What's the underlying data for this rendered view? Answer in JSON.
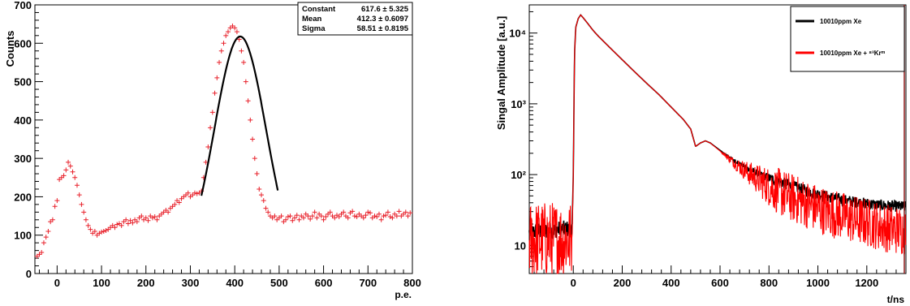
{
  "chart_data": [
    {
      "type": "scatter",
      "title": "",
      "xlabel": "p.e.",
      "ylabel": "Counts",
      "xlim": [
        -50,
        800
      ],
      "ylim": [
        0,
        700
      ],
      "xticks": [
        0,
        100,
        200,
        300,
        400,
        500,
        600,
        700,
        800
      ],
      "yticks": [
        100,
        200,
        300,
        400,
        500,
        600,
        700
      ],
      "grid": false,
      "stats_box": {
        "position": "top-right",
        "rows": [
          {
            "name": "Constant",
            "value": "617.6 ± 5.325"
          },
          {
            "name": "Mean",
            "value": "412.3 ± 0.6097"
          },
          {
            "name": "Sigma",
            "value": "58.51 ± 0.8195"
          }
        ]
      },
      "colors": {
        "data": "#e8202a",
        "fit": "#000000"
      },
      "series": [
        {
          "marker": "plus",
          "x": [
            -45,
            -40,
            -35,
            -30,
            -25,
            -20,
            -15,
            -10,
            -5,
            0,
            5,
            10,
            15,
            20,
            25,
            30,
            35,
            40,
            45,
            50,
            55,
            60,
            65,
            70,
            75,
            80,
            85,
            90,
            95,
            100,
            105,
            110,
            115,
            120,
            125,
            130,
            135,
            140,
            145,
            150,
            155,
            160,
            165,
            170,
            175,
            180,
            185,
            190,
            195,
            200,
            205,
            210,
            215,
            220,
            225,
            230,
            235,
            240,
            245,
            250,
            255,
            260,
            265,
            270,
            275,
            280,
            285,
            290,
            295,
            300,
            305,
            310,
            315,
            320,
            325,
            330,
            335,
            340,
            345,
            350,
            355,
            360,
            365,
            370,
            375,
            380,
            385,
            390,
            395,
            400,
            405,
            410,
            415,
            420,
            425,
            430,
            435,
            440,
            445,
            450,
            455,
            460,
            465,
            470,
            475,
            480,
            485,
            490,
            495,
            500,
            505,
            510,
            515,
            520,
            525,
            530,
            535,
            540,
            545,
            550,
            555,
            560,
            565,
            570,
            575,
            580,
            585,
            590,
            595,
            600,
            605,
            610,
            615,
            620,
            625,
            630,
            635,
            640,
            645,
            650,
            655,
            660,
            665,
            670,
            675,
            680,
            685,
            690,
            695,
            700,
            705,
            710,
            715,
            720,
            725,
            730,
            735,
            740,
            745,
            750,
            755,
            760,
            765,
            770,
            775,
            780,
            785,
            790,
            795
          ],
          "y": [
            45,
            50,
            55,
            80,
            95,
            110,
            135,
            140,
            175,
            190,
            245,
            250,
            255,
            270,
            290,
            280,
            265,
            250,
            230,
            205,
            180,
            160,
            140,
            125,
            115,
            105,
            110,
            100,
            105,
            108,
            110,
            112,
            115,
            120,
            125,
            120,
            128,
            130,
            125,
            135,
            140,
            130,
            138,
            132,
            140,
            135,
            145,
            150,
            140,
            145,
            138,
            150,
            145,
            148,
            140,
            150,
            155,
            160,
            165,
            160,
            170,
            175,
            180,
            190,
            185,
            195,
            200,
            205,
            210,
            200,
            205,
            210,
            208,
            210,
            215,
            250,
            290,
            330,
            380,
            420,
            470,
            510,
            550,
            580,
            600,
            620,
            630,
            640,
            645,
            640,
            630,
            610,
            580,
            550,
            500,
            450,
            400,
            350,
            300,
            260,
            220,
            205,
            190,
            170,
            160,
            150,
            145,
            150,
            140,
            145,
            150,
            135,
            140,
            148,
            150,
            138,
            145,
            152,
            140,
            150,
            145,
            155,
            150,
            142,
            150,
            160,
            145,
            155,
            150,
            140,
            148,
            155,
            160,
            150,
            145,
            152,
            148,
            155,
            160,
            150,
            145,
            158,
            162,
            150,
            148,
            155,
            150,
            145,
            152,
            160,
            158,
            145,
            150,
            148,
            155,
            140,
            150,
            152,
            160,
            148,
            145,
            155,
            150,
            162,
            150,
            155,
            160,
            150,
            158
          ]
        },
        {
          "name": "Gaussian fit",
          "type": "line",
          "model": "gaus",
          "constant": 617.6,
          "mean": 412.3,
          "sigma": 58.51,
          "x_range": [
            325,
            497
          ]
        }
      ]
    },
    {
      "type": "line",
      "title": "",
      "xlabel": "t/ns",
      "ylabel": "Singal Amplitude [a.u.]",
      "xlim": [
        -180,
        1360
      ],
      "ylim": [
        4,
        25000
      ],
      "yscale": "log",
      "xticks": [
        0,
        200,
        400,
        600,
        800,
        1000,
        1200
      ],
      "ytick_labels": [
        "10",
        "10²",
        "10³",
        "10⁴"
      ],
      "ytick_values": [
        10,
        100,
        1000,
        10000
      ],
      "grid": false,
      "legend": {
        "position": "top-right",
        "entries": [
          {
            "label": "10010ppm Xe",
            "color": "#000000"
          },
          {
            "label": "10010ppm Xe + ⁸³Krᵐ",
            "color": "#ff0000"
          }
        ]
      },
      "series": [
        {
          "color": "#000000",
          "x": [
            -180,
            -150,
            -100,
            -50,
            -5,
            0,
            5,
            10,
            20,
            30,
            40,
            60,
            80,
            100,
            150,
            200,
            250,
            300,
            350,
            400,
            450,
            480,
            500,
            520,
            540,
            560,
            600,
            650,
            700,
            750,
            800,
            850,
            900,
            950,
            1000,
            1050,
            1100,
            1150,
            1200,
            1250,
            1300,
            1360
          ],
          "y": [
            15,
            16,
            16,
            17,
            17,
            100,
            5000,
            12000,
            16000,
            18000,
            16500,
            13500,
            11000,
            9200,
            6200,
            4200,
            2850,
            1950,
            1350,
            900,
            600,
            440,
            250,
            280,
            300,
            280,
            220,
            165,
            130,
            105,
            90,
            78,
            68,
            60,
            53,
            48,
            44,
            41,
            39,
            37,
            36,
            35
          ]
        },
        {
          "color": "#ff0000",
          "x": [
            -180,
            -150,
            -100,
            -50,
            -5,
            0,
            5,
            10,
            20,
            30,
            40,
            60,
            80,
            100,
            150,
            200,
            250,
            300,
            350,
            400,
            450,
            480,
            500,
            520,
            540,
            560,
            600,
            650,
            700,
            750,
            800,
            850,
            900,
            950,
            1000,
            1050,
            1100,
            1150,
            1200,
            1250,
            1300,
            1360
          ],
          "y": [
            12,
            12,
            12,
            12,
            12,
            100,
            5000,
            12000,
            16000,
            18000,
            16500,
            13500,
            11000,
            9200,
            6200,
            4200,
            2850,
            1950,
            1350,
            900,
            600,
            440,
            250,
            280,
            300,
            280,
            215,
            155,
            115,
            88,
            68,
            55,
            46,
            39,
            33,
            29,
            26,
            23,
            21,
            19,
            17,
            16
          ]
        }
      ]
    }
  ]
}
